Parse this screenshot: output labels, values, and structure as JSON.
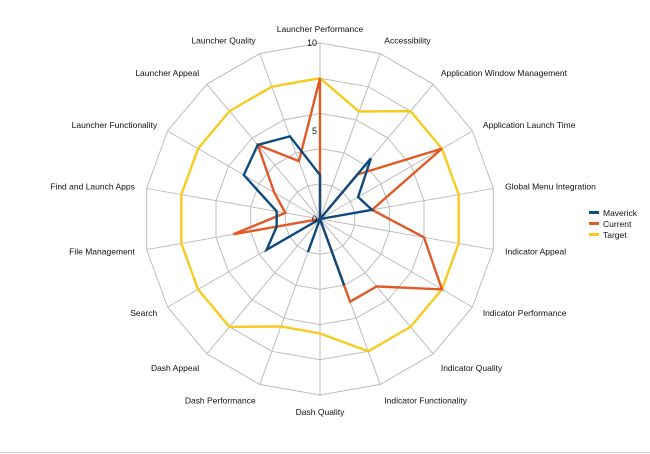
{
  "chart_data": {
    "type": "radar",
    "title": "",
    "axes": [
      "Launcher Performance",
      "Accessibility",
      "Application Window Management",
      "Application Launch Time",
      "Global Menu Integration",
      "Indicator Appeal",
      "Indicator Performance",
      "Indicator Quality",
      "Indicator Functionality",
      "Dash Quality",
      "Dash Performance",
      "Dash Appeal",
      "Search",
      "File Management",
      "Find and Launch Apps",
      "Launcher Functionality",
      "Launcher Appeal",
      "Launcher Quality"
    ],
    "range": [
      0,
      10
    ],
    "ticks": [
      {
        "value": 0,
        "label": "0"
      },
      {
        "value": 5,
        "label": "5"
      },
      {
        "value": 10,
        "label": "10"
      }
    ],
    "grid_levels": [
      2,
      4,
      6,
      8,
      10
    ],
    "grid": true,
    "legend_position": "right",
    "series": [
      {
        "name": "Maverick",
        "color": "#0e4a7e",
        "values": [
          2.5,
          0,
          4.5,
          2.5,
          3.0,
          0,
          0,
          0,
          4.0,
          0,
          2.0,
          0,
          3.5,
          2.5,
          2.5,
          5.0,
          5.5,
          5.0
        ]
      },
      {
        "name": "Current",
        "color": "#e05a28",
        "values": [
          8.0,
          0,
          3.3,
          8.0,
          3.0,
          6.0,
          8.0,
          5.0,
          5.0,
          0,
          0,
          0,
          0,
          5.0,
          2.0,
          3.0,
          5.5,
          3.5
        ]
      },
      {
        "name": "Target",
        "color": "#f5cc1f",
        "values": [
          8.0,
          6.5,
          8.0,
          8.0,
          8.0,
          8.0,
          8.0,
          8.0,
          8.0,
          6.5,
          6.5,
          8.0,
          8.0,
          8.0,
          8.0,
          8.0,
          8.0,
          8.0
        ]
      }
    ]
  }
}
